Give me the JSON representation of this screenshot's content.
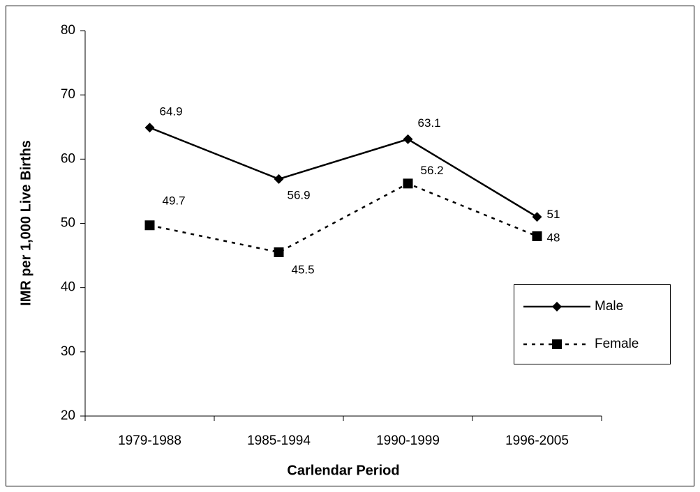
{
  "chart_data": {
    "type": "line",
    "x_label": "Carlendar Period",
    "y_label": "IMR per 1,000 Live Births",
    "categories": [
      "1979-1988",
      "1985-1994",
      "1990-1999",
      "1996-2005"
    ],
    "series": [
      {
        "name": "Male",
        "color": "#000000",
        "values": [
          64.9,
          56.9,
          63.1,
          51
        ]
      },
      {
        "name": "Female",
        "color": "#000000",
        "values": [
          49.7,
          45.5,
          56.2,
          48
        ]
      }
    ],
    "ylim": [
      20,
      80
    ],
    "yticks": [
      20,
      30,
      40,
      50,
      60,
      70,
      80
    ],
    "grid": false,
    "legend": "right"
  }
}
